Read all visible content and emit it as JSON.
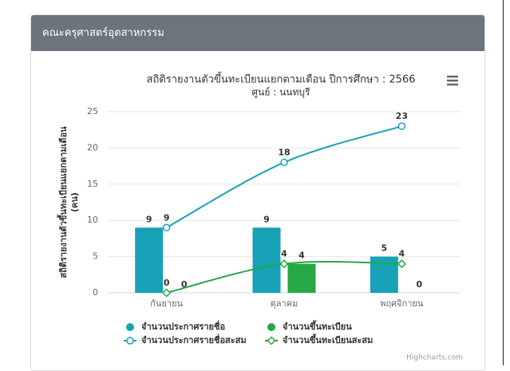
{
  "header": {
    "title": "คณะครุศาสตร์อุตสาหกรรม"
  },
  "chart_data": {
    "type": "combo",
    "title": "สถิติรายงานตัวขึ้นทะเบียนแยกตามเดือน ปีการศึกษา : 2566",
    "subtitle": "ศูนย์ : นนทบุรี",
    "y_label": [
      "สถิติรายงานตัวขึ้นทะเบียนแยกตามเดือน",
      "(คน)"
    ],
    "categories": [
      "กันยายน",
      "ตุลาคม",
      "พฤศจิกายน"
    ],
    "ylim": [
      0,
      25
    ],
    "yticks": [
      0,
      5,
      10,
      15,
      20,
      25
    ],
    "grid": true,
    "legend": "bottom",
    "credits": "Highcharts.com",
    "series": [
      {
        "name": "จำนวนประกาศรายชื่อ",
        "type": "column",
        "color": "#17a2b8",
        "values": [
          9,
          9,
          5
        ]
      },
      {
        "name": "จำนวนขึ้นทะเบียน",
        "type": "column",
        "color": "#28a745",
        "values": [
          0,
          4,
          0
        ]
      },
      {
        "name": "จำนวนประกาศรายชื่อสะสม",
        "type": "spline",
        "marker": "circle",
        "color": "#17a2b8",
        "values": [
          9,
          18,
          23
        ]
      },
      {
        "name": "จำนวนขึ้นทะเบียนสะสม",
        "type": "spline",
        "marker": "diamond",
        "color": "#28a745",
        "values": [
          0,
          4,
          4
        ]
      }
    ]
  }
}
